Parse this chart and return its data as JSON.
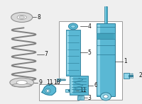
{
  "bg_color": "#efefef",
  "blue": "#5ab8d4",
  "blue_dark": "#3a98b4",
  "blue_light": "#8ed4e8",
  "blue_mid": "#4aaec8",
  "outline": "#2a7a95",
  "spring_color": "#b0b0b0",
  "spring_outline": "#808080",
  "gray_part": "#d8d8d8",
  "gray_dark": "#909090",
  "label_color": "#111111",
  "line_color": "#333333",
  "box_border": "#999999",
  "white": "#ffffff",
  "figsize": [
    2.0,
    1.47
  ],
  "dpi": 100
}
